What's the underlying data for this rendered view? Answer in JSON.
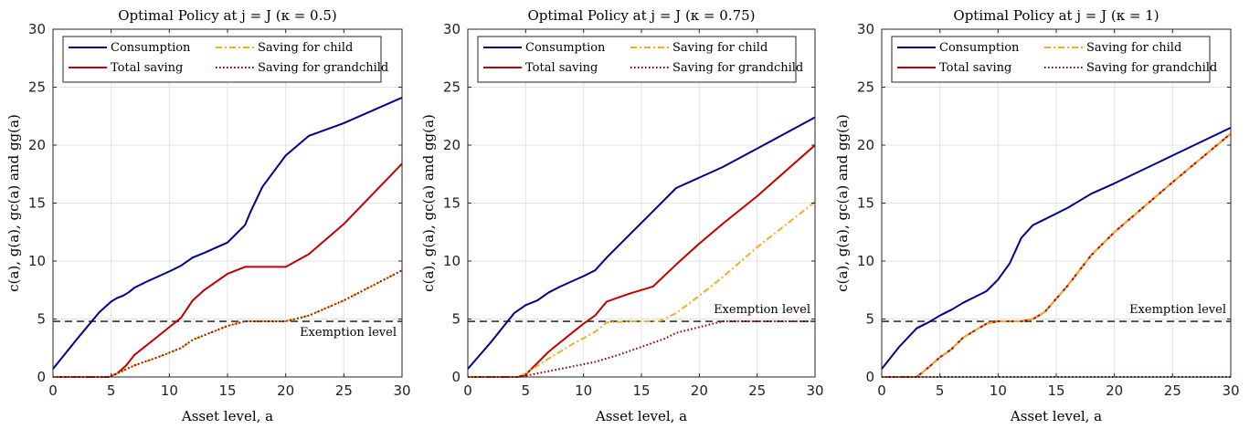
{
  "chart_data": [
    {
      "type": "line",
      "title": "Optimal Policy at j = J (κ = 0.5)",
      "xlabel": "Asset level, a",
      "ylabel": "c(a), g(a), gc(a) and gg(a)",
      "xlim": [
        0,
        30
      ],
      "ylim": [
        0,
        30
      ],
      "xticks": [
        "0",
        "5",
        "10",
        "15",
        "20",
        "25",
        "30"
      ],
      "yticks": [
        "0",
        "5",
        "10",
        "15",
        "20",
        "25",
        "30"
      ],
      "grid": true,
      "legend_position": "top",
      "exemption_level": 4.8,
      "exemption_label": "Exemption level",
      "series": [
        {
          "name": "Consumption",
          "color": "#00008b",
          "dash": "solid",
          "x": [
            0,
            2,
            4,
            5,
            5.5,
            6,
            6.5,
            7,
            8,
            10,
            11,
            12,
            13,
            15,
            16.5,
            17,
            18,
            20,
            22,
            25,
            30
          ],
          "y": [
            0.7,
            3.2,
            5.6,
            6.5,
            6.8,
            7.0,
            7.3,
            7.7,
            8.2,
            9.1,
            9.6,
            10.3,
            10.7,
            11.6,
            13.1,
            14.3,
            16.4,
            19.1,
            20.8,
            21.9,
            24.1
          ]
        },
        {
          "name": "Total saving",
          "color": "#c00000",
          "dash": "solid",
          "x": [
            0,
            4.8,
            5.5,
            6.3,
            7,
            9,
            10,
            11,
            12,
            13,
            15,
            16.5,
            18,
            20,
            22,
            25,
            30
          ],
          "y": [
            0,
            0,
            0.3,
            1.0,
            1.9,
            3.5,
            4.3,
            5.1,
            6.6,
            7.5,
            8.9,
            9.5,
            9.5,
            9.5,
            10.6,
            13.2,
            18.4
          ]
        },
        {
          "name": "Saving for child",
          "color": "#edb120",
          "dash": "dashdot",
          "x": [
            0,
            4.8,
            5.5,
            7,
            9,
            11,
            12,
            13,
            15,
            16.5,
            18,
            20,
            22,
            25,
            30
          ],
          "y": [
            0,
            0,
            0.3,
            1.0,
            1.7,
            2.5,
            3.2,
            3.6,
            4.4,
            4.8,
            4.8,
            4.8,
            5.3,
            6.6,
            9.2
          ]
        },
        {
          "name": "Saving for grandchild",
          "color": "#8b0000",
          "dash": "dotted",
          "x": [
            0,
            4.8,
            5.5,
            7,
            9,
            11,
            12,
            13,
            15,
            16.5,
            18,
            20,
            22,
            25,
            30
          ],
          "y": [
            0,
            0,
            0.3,
            1.0,
            1.7,
            2.5,
            3.2,
            3.6,
            4.4,
            4.8,
            4.8,
            4.8,
            5.3,
            6.6,
            9.2
          ]
        }
      ]
    },
    {
      "type": "line",
      "title": "Optimal Policy at j = J (κ = 0.75)",
      "xlabel": "Asset level, a",
      "ylabel": "c(a), g(a), gc(a) and gg(a)",
      "xlim": [
        0,
        30
      ],
      "ylim": [
        0,
        30
      ],
      "xticks": [
        "0",
        "5",
        "10",
        "15",
        "20",
        "25",
        "30"
      ],
      "yticks": [
        "0",
        "5",
        "10",
        "15",
        "20",
        "25",
        "30"
      ],
      "grid": true,
      "legend_position": "top",
      "exemption_level": 4.8,
      "exemption_label": "Exemption level",
      "series": [
        {
          "name": "Consumption",
          "color": "#00008b",
          "dash": "solid",
          "x": [
            0,
            2,
            4,
            5,
            6,
            7,
            8,
            10,
            11,
            12,
            14,
            16,
            18,
            20,
            22,
            25,
            30
          ],
          "y": [
            0.7,
            3.0,
            5.5,
            6.2,
            6.6,
            7.3,
            7.8,
            8.7,
            9.2,
            10.3,
            12.3,
            14.3,
            16.3,
            17.2,
            18.1,
            19.7,
            22.4
          ]
        },
        {
          "name": "Total saving",
          "color": "#c00000",
          "dash": "solid",
          "x": [
            0,
            4.3,
            5,
            7,
            9,
            10,
            11,
            12,
            14,
            16,
            18,
            20,
            22,
            25,
            30
          ],
          "y": [
            0,
            0,
            0.2,
            2.2,
            3.8,
            4.6,
            5.3,
            6.5,
            7.2,
            7.8,
            9.7,
            11.5,
            13.2,
            15.6,
            20.0
          ]
        },
        {
          "name": "Saving for child",
          "color": "#edb120",
          "dash": "dashdot",
          "x": [
            0,
            4.3,
            5,
            7,
            9,
            11,
            12,
            14,
            16.5,
            18,
            20,
            22,
            25,
            30
          ],
          "y": [
            0,
            0,
            0.3,
            1.6,
            2.8,
            3.9,
            4.7,
            4.8,
            4.8,
            5.5,
            7.0,
            8.6,
            11.2,
            15.1
          ]
        },
        {
          "name": "Saving for grandchild",
          "color": "#8b0000",
          "dash": "dotted",
          "x": [
            0,
            4.3,
            5,
            7,
            9,
            11,
            13,
            15,
            17,
            18,
            20,
            22,
            25,
            30
          ],
          "y": [
            0,
            0,
            0.1,
            0.5,
            0.9,
            1.3,
            1.9,
            2.6,
            3.3,
            3.8,
            4.3,
            4.8,
            4.8,
            4.8
          ]
        }
      ]
    },
    {
      "type": "line",
      "title": "Optimal Policy at j = J (κ = 1)",
      "xlabel": "Asset level, a",
      "ylabel": "c(a), g(a), gc(a) and gg(a)",
      "xlim": [
        0,
        30
      ],
      "ylim": [
        0,
        30
      ],
      "xticks": [
        "0",
        "5",
        "10",
        "15",
        "20",
        "25",
        "30"
      ],
      "yticks": [
        "0",
        "5",
        "10",
        "15",
        "20",
        "25",
        "30"
      ],
      "grid": true,
      "legend_position": "top",
      "exemption_level": 4.8,
      "exemption_label": "Exemption level",
      "series": [
        {
          "name": "Consumption",
          "color": "#00008b",
          "dash": "solid",
          "x": [
            0,
            1.5,
            3,
            4,
            5,
            6,
            7,
            8,
            9,
            10,
            11,
            12,
            13,
            14,
            16,
            18,
            20,
            25,
            30
          ],
          "y": [
            0.7,
            2.6,
            4.2,
            4.7,
            5.3,
            5.8,
            6.4,
            6.9,
            7.4,
            8.4,
            9.8,
            12.0,
            13.1,
            13.6,
            14.6,
            15.8,
            16.7,
            19.1,
            21.5
          ]
        },
        {
          "name": "Total saving",
          "color": "#c00000",
          "dash": "solid",
          "x": [
            0,
            3,
            4,
            5,
            6,
            7,
            9,
            10,
            12,
            13,
            14,
            16,
            18,
            20,
            25,
            30
          ],
          "y": [
            0,
            0,
            0.8,
            1.7,
            2.4,
            3.4,
            4.6,
            4.8,
            4.8,
            5.0,
            5.6,
            7.9,
            10.5,
            12.5,
            16.8,
            21.0
          ]
        },
        {
          "name": "Saving for child",
          "color": "#edb120",
          "dash": "dashdot",
          "x": [
            0,
            3,
            4,
            5,
            6,
            7,
            9,
            10,
            12,
            13,
            14,
            16,
            18,
            20,
            25,
            30
          ],
          "y": [
            0,
            0,
            0.8,
            1.7,
            2.4,
            3.4,
            4.6,
            4.8,
            4.8,
            5.0,
            5.6,
            7.9,
            10.5,
            12.5,
            16.8,
            21.0
          ]
        },
        {
          "name": "Saving for grandchild",
          "color": "#8b0000",
          "dash": "dotted",
          "x": [
            0,
            30
          ],
          "y": [
            0,
            0
          ]
        }
      ]
    }
  ]
}
